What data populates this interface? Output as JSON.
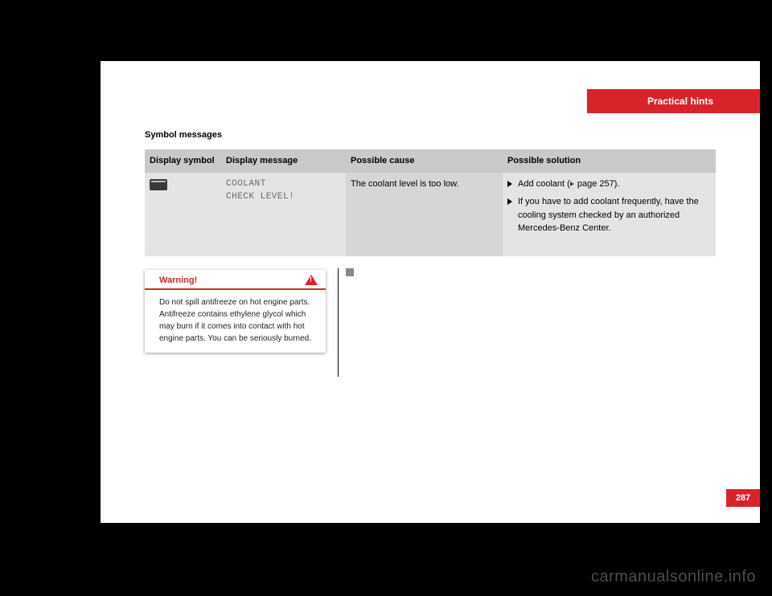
{
  "header": {
    "title": "Practical hints"
  },
  "section_title": "Symbol messages",
  "table": {
    "columns": [
      "Display symbol",
      "Display message",
      "Possible cause",
      "Possible solution"
    ],
    "rows": [
      {
        "symbol": "coolant-icon",
        "message_line1": "COOLANT",
        "message_line2": "CHECK LEVEL!",
        "cause": "The coolant level is too low.",
        "solutions": [
          {
            "text_pre": "Add coolant (",
            "ref": "page 257",
            "text_post": ")."
          },
          {
            "text": "If you have to add coolant frequently, have the cooling system checked by an authorized Mercedes-Benz Center."
          }
        ]
      }
    ]
  },
  "warning": {
    "title": "Warning!",
    "body": "Do not spill antifreeze on hot engine parts. Antifreeze contains ethylene glycol which may burn if it comes into contact with hot engine parts. You can be seriously burned."
  },
  "page_number": "287",
  "watermark": "carmanualsonline.info",
  "colors": {
    "brand_red": "#d8232a",
    "page_bg": "#ffffff",
    "body_bg": "#000000",
    "table_head_bg": "#c9c9c9",
    "table_cell_light": "#e4e4e4",
    "table_cell_dark": "#d6d6d6",
    "mono_text": "#6a6a6a"
  }
}
